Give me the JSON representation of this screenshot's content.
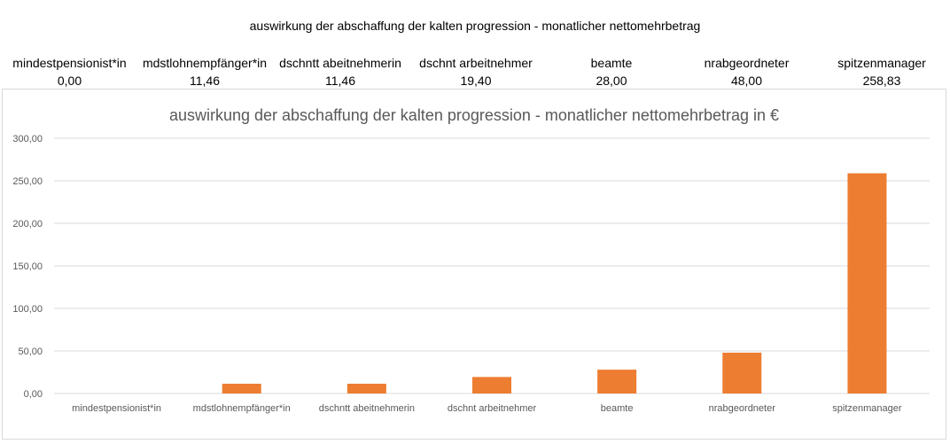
{
  "sheet": {
    "title": "auswirkung der abschaffung der kalten progression - monatlicher nettomehrbetrag"
  },
  "table": {
    "headers": [
      "mindestpensionist*in",
      "mdstlohnempfänger*in",
      "dschntt abeitnehmerin",
      "dschnt arbeitnehmer",
      "beamte",
      "nrabgeordneter",
      "spitzenmanager"
    ],
    "values": [
      "0,00",
      "11,46",
      "11,46",
      "19,40",
      "28,00",
      "48,00",
      "258,83"
    ]
  },
  "chart_data": {
    "type": "bar",
    "title": "auswirkung der abschaffung der kalten progression - monatlicher nettomehrbetrag in €",
    "categories": [
      "mindestpensionist*in",
      "mdstlohnempfänger*in",
      "dschntt abeitnehmerin",
      "dschnt arbeitnehmer",
      "beamte",
      "nrabgeordneter",
      "spitzenmanager"
    ],
    "values": [
      0.0,
      11.46,
      11.46,
      19.4,
      28.0,
      48.0,
      258.83
    ],
    "ylim": [
      0,
      300
    ],
    "yticks": [
      "0,00",
      "50,00",
      "100,00",
      "150,00",
      "200,00",
      "250,00",
      "300,00"
    ],
    "grid": true,
    "bar_color": "#ED7D31",
    "gridline_color": "#d9d9d9",
    "text_color": "#595959"
  }
}
